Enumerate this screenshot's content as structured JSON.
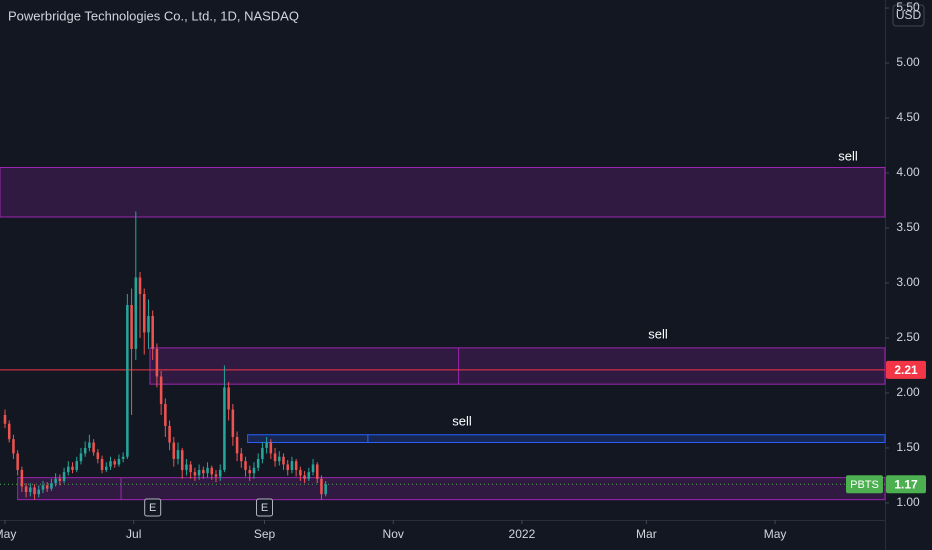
{
  "chart_data": {
    "type": "candlestick",
    "title": "Powerbridge Technologies Co., Ltd., 1D, NASDAQ",
    "currency": "USD",
    "up_color": "#26a69a",
    "down_color": "#ef5350",
    "xlim": [
      -2.37,
      417.1
    ],
    "ylim": [
      0.845,
      5.573
    ],
    "xticks": [
      {
        "value": 0,
        "label": "May"
      },
      {
        "value": 61,
        "label": "Jul"
      },
      {
        "value": 123,
        "label": "Sep"
      },
      {
        "value": 184,
        "label": "Nov"
      },
      {
        "value": 245,
        "label": "2022"
      },
      {
        "value": 304,
        "label": "Mar"
      },
      {
        "value": 365,
        "label": "May"
      }
    ],
    "yticks": [
      {
        "value": 1,
        "label": "1.00"
      },
      {
        "value": 1.5,
        "label": "1.50"
      },
      {
        "value": 2,
        "label": "2.00"
      },
      {
        "value": 2.5,
        "label": "2.50"
      },
      {
        "value": 3,
        "label": "3.00"
      },
      {
        "value": 3.5,
        "label": "3.50"
      },
      {
        "value": 4,
        "label": "4.00"
      },
      {
        "value": 4.5,
        "label": "4.50"
      },
      {
        "value": 5,
        "label": "5.00"
      },
      {
        "value": 5.5,
        "label": "5.50"
      }
    ],
    "x": [
      0,
      2,
      4,
      6,
      8,
      10,
      12,
      14,
      16,
      18,
      20,
      22,
      24,
      26,
      28,
      30,
      32,
      34,
      36,
      38,
      40,
      42,
      44,
      46,
      48,
      50,
      52,
      54,
      56,
      58,
      60,
      62,
      64,
      66,
      68,
      70,
      72,
      74,
      76,
      78,
      80,
      82,
      84,
      86,
      88,
      90,
      92,
      94,
      96,
      98,
      100,
      102,
      104,
      106,
      108,
      110,
      112,
      114,
      116,
      118,
      120,
      122,
      124,
      126,
      128,
      130,
      132,
      134,
      136,
      138,
      140,
      142,
      144,
      146,
      148,
      150,
      152
    ],
    "open": [
      1.8,
      1.72,
      1.58,
      1.45,
      1.3,
      1.15,
      1.1,
      1.14,
      1.08,
      1.12,
      1.16,
      1.13,
      1.18,
      1.22,
      1.2,
      1.28,
      1.33,
      1.3,
      1.38,
      1.45,
      1.5,
      1.55,
      1.46,
      1.4,
      1.3,
      1.33,
      1.38,
      1.35,
      1.4,
      1.42,
      2.8,
      2.4,
      3.05,
      2.9,
      2.55,
      2.7,
      2.4,
      2.15,
      1.9,
      1.7,
      1.55,
      1.4,
      1.48,
      1.3,
      1.35,
      1.28,
      1.25,
      1.3,
      1.27,
      1.32,
      1.26,
      1.24,
      1.3,
      2.05,
      1.85,
      1.6,
      1.45,
      1.38,
      1.3,
      1.27,
      1.32,
      1.4,
      1.5,
      1.55,
      1.45,
      1.38,
      1.42,
      1.35,
      1.3,
      1.38,
      1.3,
      1.25,
      1.22,
      1.28,
      1.35,
      1.22,
      1.08
    ],
    "high": [
      1.85,
      1.75,
      1.62,
      1.48,
      1.33,
      1.18,
      1.18,
      1.17,
      1.16,
      1.2,
      1.19,
      1.22,
      1.27,
      1.26,
      1.32,
      1.38,
      1.37,
      1.42,
      1.5,
      1.56,
      1.62,
      1.58,
      1.49,
      1.43,
      1.37,
      1.42,
      1.4,
      1.44,
      1.46,
      2.9,
      2.95,
      3.65,
      3.1,
      2.95,
      2.85,
      2.75,
      2.45,
      2.2,
      1.95,
      1.75,
      1.6,
      1.55,
      1.5,
      1.4,
      1.38,
      1.32,
      1.35,
      1.33,
      1.37,
      1.34,
      1.3,
      1.35,
      2.25,
      2.1,
      1.9,
      1.65,
      1.5,
      1.42,
      1.34,
      1.37,
      1.45,
      1.55,
      1.6,
      1.58,
      1.5,
      1.47,
      1.45,
      1.39,
      1.42,
      1.4,
      1.33,
      1.29,
      1.32,
      1.4,
      1.37,
      1.25,
      1.2
    ],
    "low": [
      1.68,
      1.55,
      1.4,
      1.25,
      1.1,
      1.05,
      1.06,
      1.03,
      1.05,
      1.09,
      1.1,
      1.11,
      1.15,
      1.16,
      1.18,
      1.25,
      1.27,
      1.28,
      1.35,
      1.42,
      1.47,
      1.43,
      1.36,
      1.27,
      1.28,
      1.3,
      1.32,
      1.33,
      1.37,
      1.4,
      1.8,
      2.3,
      2.5,
      2.35,
      2.4,
      2.3,
      2.05,
      1.8,
      1.6,
      1.48,
      1.33,
      1.35,
      1.22,
      1.25,
      1.22,
      1.2,
      1.21,
      1.22,
      1.23,
      1.21,
      1.19,
      1.2,
      1.28,
      1.75,
      1.52,
      1.38,
      1.32,
      1.24,
      1.2,
      1.22,
      1.29,
      1.36,
      1.45,
      1.4,
      1.33,
      1.34,
      1.3,
      1.25,
      1.27,
      1.24,
      1.2,
      1.18,
      1.2,
      1.25,
      1.18,
      1.03,
      1.06
    ],
    "close": [
      1.72,
      1.58,
      1.45,
      1.3,
      1.15,
      1.1,
      1.14,
      1.08,
      1.12,
      1.16,
      1.13,
      1.18,
      1.22,
      1.2,
      1.28,
      1.33,
      1.3,
      1.38,
      1.45,
      1.5,
      1.55,
      1.46,
      1.4,
      1.3,
      1.33,
      1.38,
      1.35,
      1.4,
      1.42,
      2.8,
      2.4,
      3.05,
      2.9,
      2.55,
      2.7,
      2.4,
      2.15,
      1.9,
      1.7,
      1.55,
      1.4,
      1.48,
      1.3,
      1.35,
      1.28,
      1.25,
      1.3,
      1.27,
      1.32,
      1.26,
      1.24,
      1.3,
      2.05,
      1.85,
      1.6,
      1.45,
      1.38,
      1.3,
      1.27,
      1.32,
      1.4,
      1.5,
      1.55,
      1.45,
      1.38,
      1.42,
      1.35,
      1.3,
      1.38,
      1.3,
      1.25,
      1.22,
      1.28,
      1.35,
      1.22,
      1.08,
      1.17
    ],
    "zones": [
      {
        "label": "sell",
        "low": 3.6,
        "high": 4.05,
        "color": "#9c27b0"
      },
      {
        "label": "sell",
        "low": 2.08,
        "high": 2.41,
        "start": 68.7,
        "split": 215,
        "color": "#9c27b0"
      },
      {
        "label": "sell",
        "low": 1.55,
        "high": 1.62,
        "start": 115,
        "split": 172,
        "color": "#2962ff"
      },
      {
        "low": 1.03,
        "high": 1.23,
        "start": 6,
        "split": 55,
        "color": "#9c27b0"
      }
    ],
    "price_line": {
      "value": 2.21,
      "color": "#f23645"
    },
    "last_price": {
      "symbol": "PBTS",
      "value": 1.17,
      "color": "#4caf50"
    },
    "events": [
      {
        "x": 70,
        "label": "E"
      },
      {
        "x": 123,
        "label": "E"
      }
    ]
  }
}
